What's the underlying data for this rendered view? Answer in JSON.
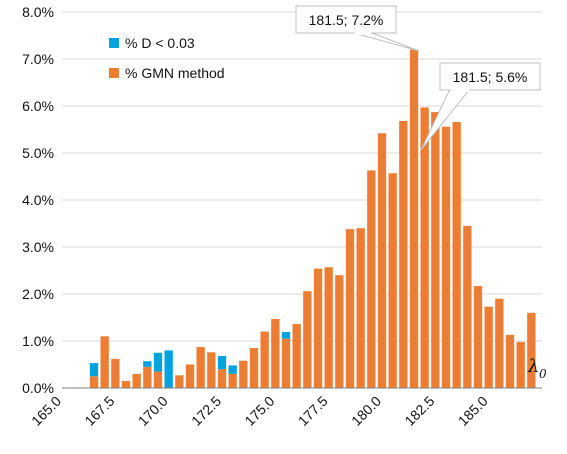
{
  "chart_data": {
    "type": "bar",
    "stacked": true,
    "x_label_symbol": "λ",
    "x_label_subscript": "0",
    "xlim": [
      165.0,
      187.5
    ],
    "ylim": [
      0,
      8
    ],
    "y_tick_values": [
      0,
      1,
      2,
      3,
      4,
      5,
      6,
      7,
      8
    ],
    "y_tick_labels": [
      "0.0%",
      "1.0%",
      "2.0%",
      "3.0%",
      "4.0%",
      "5.0%",
      "6.0%",
      "7.0%",
      "8.0%"
    ],
    "x_tick_values": [
      165.0,
      167.5,
      170.0,
      172.5,
      175.0,
      177.5,
      180.0,
      182.5,
      185.0
    ],
    "x_tick_labels": [
      "165.0",
      "167.5",
      "170.0",
      "172.5",
      "175.0",
      "177.5",
      "180.0",
      "182.5",
      "185.0"
    ],
    "grid": "horizontal",
    "legend_position": "top-left",
    "x": [
      166.5,
      167.0,
      167.5,
      168.0,
      168.5,
      169.0,
      169.5,
      170.0,
      170.5,
      171.0,
      171.5,
      172.0,
      172.5,
      173.0,
      173.5,
      174.0,
      174.5,
      175.0,
      175.5,
      176.0,
      176.5,
      177.0,
      177.5,
      178.0,
      178.5,
      179.0,
      179.5,
      180.0,
      180.5,
      181.0,
      181.5,
      182.0,
      182.5,
      183.0,
      183.5,
      184.0,
      184.5,
      185.0,
      185.5,
      186.0,
      186.5,
      187.0
    ],
    "series": [
      {
        "name": "% GMN method",
        "color": "#ED7D31",
        "values": [
          0.25,
          1.1,
          0.62,
          0.15,
          0.3,
          0.45,
          0.35,
          0.0,
          0.27,
          0.5,
          0.87,
          0.76,
          0.4,
          0.3,
          0.58,
          0.85,
          1.2,
          1.47,
          1.05,
          1.36,
          2.06,
          2.54,
          2.57,
          2.4,
          3.38,
          3.4,
          4.63,
          5.42,
          4.57,
          5.68,
          7.2,
          5.97,
          5.87,
          5.56,
          5.66,
          3.45,
          2.17,
          1.73,
          1.9,
          1.13,
          0.98,
          1.6
        ]
      },
      {
        "name": "% D < 0.03",
        "color": "#00A3E0",
        "values": [
          0.28,
          0.0,
          0.0,
          0.0,
          0.0,
          0.12,
          0.4,
          0.8,
          0.0,
          0.0,
          0.0,
          0.0,
          0.28,
          0.18,
          0.0,
          0.0,
          0.0,
          0.0,
          0.14,
          0.0,
          0.0,
          0.0,
          0.0,
          0.0,
          0.0,
          0.0,
          0.0,
          0.0,
          0.0,
          0.0,
          0.0,
          0.0,
          0.0,
          0.0,
          0.0,
          0.0,
          0.0,
          0.0,
          0.0,
          0.0,
          0.0,
          0.0
        ]
      }
    ],
    "legend": [
      {
        "label": "% D < 0.03",
        "color": "#00A3E0"
      },
      {
        "label": "% GMN method",
        "color": "#ED7D31"
      }
    ],
    "annotations": [
      {
        "text": "181.5; 7.2%",
        "target_x": 181.5,
        "target_y": 7.2
      },
      {
        "text": "181.5; 5.6%",
        "target_x": 181.5,
        "target_y": 5.6
      }
    ]
  }
}
